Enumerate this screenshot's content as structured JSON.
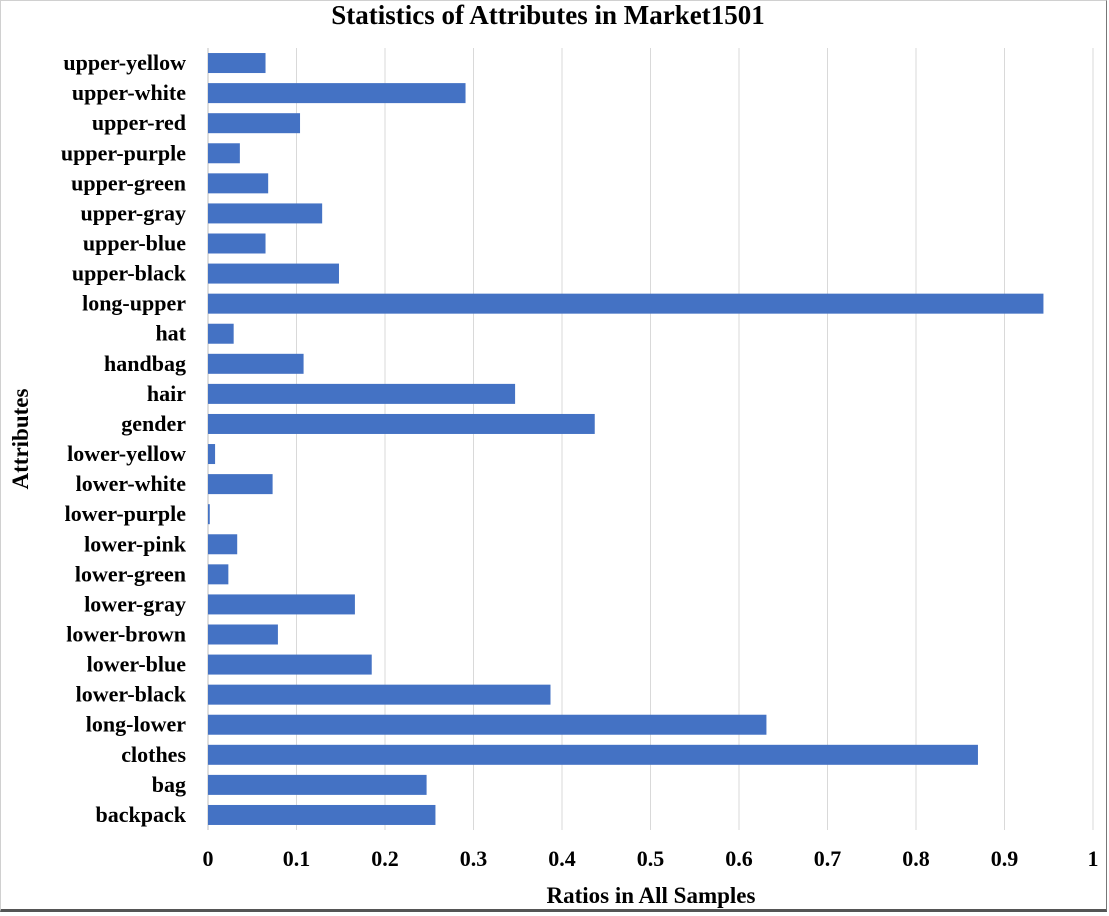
{
  "chart_data": {
    "type": "bar",
    "orientation": "horizontal",
    "title": "Statistics of Attributes in Market1501",
    "xlabel": "Ratios in All Samples",
    "ylabel": "Attributes",
    "xlim": [
      0,
      1
    ],
    "xticks": [
      "0",
      "0.1",
      "0.2",
      "0.3",
      "0.4",
      "0.5",
      "0.6",
      "0.7",
      "0.8",
      "0.9",
      "1"
    ],
    "grid": "vertical",
    "bar_color": "#4472C4",
    "categories": [
      "upper-yellow",
      "upper-white",
      "upper-red",
      "upper-purple",
      "upper-green",
      "upper-gray",
      "upper-blue",
      "upper-black",
      "long-upper",
      "hat",
      "handbag",
      "hair",
      "gender",
      "lower-yellow",
      "lower-white",
      "lower-purple",
      "lower-pink",
      "lower-green",
      "lower-gray",
      "lower-brown",
      "lower-blue",
      "lower-black",
      "long-lower",
      "clothes",
      "bag",
      "backpack"
    ],
    "values": [
      0.065,
      0.291,
      0.104,
      0.036,
      0.068,
      0.129,
      0.065,
      0.148,
      0.944,
      0.029,
      0.108,
      0.347,
      0.437,
      0.008,
      0.073,
      0.002,
      0.033,
      0.023,
      0.166,
      0.079,
      0.185,
      0.387,
      0.631,
      0.87,
      0.247,
      0.257
    ]
  }
}
